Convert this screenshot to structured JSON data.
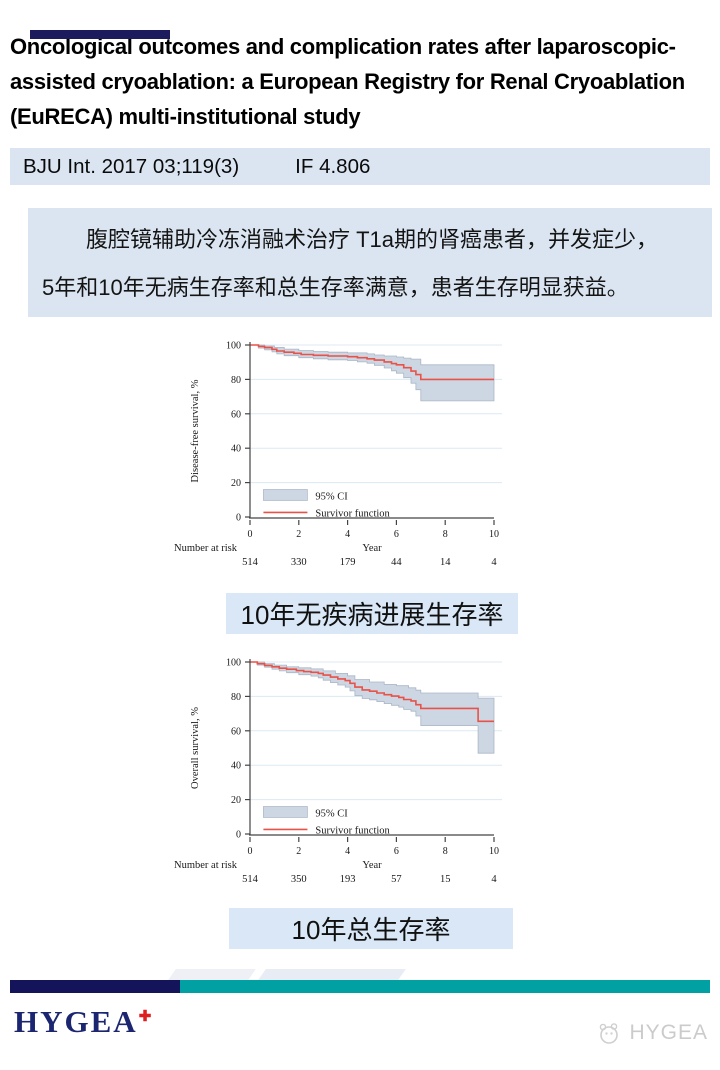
{
  "header": {
    "title": "Oncological outcomes and complication rates after laparoscopic-assisted cryoablation: a European Registry for Renal Cryoablation (EuRECA) multi-institutional study",
    "citation": "BJU Int. 2017 03;119(3)",
    "impact_factor": "IF 4.806"
  },
  "summary": {
    "lines": [
      "腹腔镜辅助冷冻消融术治疗 T1a期的肾癌患者，并发症少，",
      "5年和10年无病生存率和总生存率满意，患者生存明显获益。"
    ]
  },
  "chart_style": {
    "ci_fill": "#cdd7e3",
    "ci_edge": "#aab6c6",
    "line": "#e85248",
    "grid": "#dce9f2",
    "axis": "#444444",
    "text": "#1a1a1a"
  },
  "chart_data": [
    {
      "type": "line",
      "subtype": "kaplan-meier-step",
      "title": "",
      "ylabel": "Disease-free survival, %",
      "xlabel": "Year",
      "ylim": [
        0,
        100
      ],
      "xlim": [
        0,
        10
      ],
      "yticks": [
        0,
        20,
        40,
        60,
        80,
        100
      ],
      "xticks": [
        0,
        2,
        4,
        6,
        8,
        10
      ],
      "grid": "horizontal-on",
      "legend_position": "bottom-left-inside",
      "legend": [
        "95% CI",
        "Survivor function"
      ],
      "number_at_risk_label": "Number at risk",
      "number_at_risk": [
        514,
        330,
        179,
        44,
        14,
        4
      ],
      "survivor": [
        [
          0,
          100
        ],
        [
          0.35,
          99.2
        ],
        [
          0.6,
          98.5
        ],
        [
          0.9,
          97.5
        ],
        [
          1.1,
          96.5
        ],
        [
          1.4,
          95.8
        ],
        [
          1.8,
          95.2
        ],
        [
          2.1,
          94.5
        ],
        [
          2.6,
          94
        ],
        [
          3.2,
          93.6
        ],
        [
          4,
          93.2
        ],
        [
          4.4,
          92.6
        ],
        [
          4.8,
          92
        ],
        [
          5.1,
          91.2
        ],
        [
          5.5,
          90.2
        ],
        [
          5.8,
          89.2
        ],
        [
          6,
          88.5
        ],
        [
          6.3,
          86.8
        ],
        [
          6.6,
          84.8
        ],
        [
          6.8,
          82.8
        ],
        [
          7,
          80
        ],
        [
          10,
          80
        ]
      ],
      "ci_upper": [
        [
          0,
          100
        ],
        [
          0.6,
          99.4
        ],
        [
          1,
          98.6
        ],
        [
          1.4,
          97.6
        ],
        [
          2,
          96.8
        ],
        [
          2.6,
          96.2
        ],
        [
          3.2,
          95.8
        ],
        [
          4,
          95.4
        ],
        [
          4.8,
          94.8
        ],
        [
          5.1,
          94.2
        ],
        [
          5.5,
          93.6
        ],
        [
          6,
          93
        ],
        [
          6.3,
          92.4
        ],
        [
          6.6,
          91.8
        ],
        [
          7,
          88.5
        ],
        [
          10,
          88.5
        ]
      ],
      "ci_lower": [
        [
          0,
          100
        ],
        [
          0.35,
          98.2
        ],
        [
          0.6,
          97.2
        ],
        [
          0.9,
          96
        ],
        [
          1.1,
          94.8
        ],
        [
          1.4,
          93.8
        ],
        [
          2,
          92.6
        ],
        [
          2.6,
          92
        ],
        [
          3.2,
          91.4
        ],
        [
          4,
          91
        ],
        [
          4.4,
          90.2
        ],
        [
          4.8,
          89.4
        ],
        [
          5.1,
          88.2
        ],
        [
          5.5,
          86.6
        ],
        [
          5.8,
          85
        ],
        [
          6,
          83.6
        ],
        [
          6.3,
          81
        ],
        [
          6.6,
          77.8
        ],
        [
          6.8,
          74
        ],
        [
          7,
          67.5
        ],
        [
          10,
          67.5
        ]
      ],
      "caption": "10年无疾病进展生存率"
    },
    {
      "type": "line",
      "subtype": "kaplan-meier-step",
      "title": "",
      "ylabel": "Overall survival, %",
      "xlabel": "Year",
      "ylim": [
        0,
        100
      ],
      "xlim": [
        0,
        10
      ],
      "yticks": [
        0,
        20,
        40,
        60,
        80,
        100
      ],
      "xticks": [
        0,
        2,
        4,
        6,
        8,
        10
      ],
      "grid": "horizontal-on",
      "legend_position": "bottom-left-inside",
      "legend": [
        "95% CI",
        "Survivor function"
      ],
      "number_at_risk_label": "Number at risk",
      "number_at_risk": [
        514,
        350,
        193,
        57,
        15,
        4
      ],
      "survivor": [
        [
          0,
          100
        ],
        [
          0.3,
          99
        ],
        [
          0.6,
          98
        ],
        [
          0.9,
          97.2
        ],
        [
          1.2,
          96.4
        ],
        [
          1.5,
          95.8
        ],
        [
          1.9,
          95
        ],
        [
          2.2,
          94.4
        ],
        [
          2.5,
          94
        ],
        [
          2.8,
          93.4
        ],
        [
          3,
          92.4
        ],
        [
          3.3,
          91.2
        ],
        [
          3.6,
          90.2
        ],
        [
          3.9,
          89.2
        ],
        [
          4.1,
          87.6
        ],
        [
          4.3,
          85.4
        ],
        [
          4.6,
          83.8
        ],
        [
          4.9,
          83
        ],
        [
          5.2,
          82
        ],
        [
          5.5,
          81
        ],
        [
          5.8,
          80.2
        ],
        [
          6.1,
          79.4
        ],
        [
          6.3,
          78.2
        ],
        [
          6.6,
          77.4
        ],
        [
          6.8,
          75.2
        ],
        [
          7,
          73
        ],
        [
          9.2,
          73
        ],
        [
          9.35,
          65.5
        ],
        [
          10,
          65.5
        ]
      ],
      "ci_upper": [
        [
          0,
          100
        ],
        [
          0.6,
          99
        ],
        [
          1,
          98.2
        ],
        [
          1.5,
          97.2
        ],
        [
          2,
          96.6
        ],
        [
          2.5,
          96
        ],
        [
          3,
          94.8
        ],
        [
          3.5,
          93.4
        ],
        [
          4,
          92
        ],
        [
          4.3,
          89.8
        ],
        [
          4.9,
          88.4
        ],
        [
          5.5,
          87
        ],
        [
          6,
          86.2
        ],
        [
          6.5,
          85
        ],
        [
          6.8,
          83.6
        ],
        [
          7,
          82
        ],
        [
          9.2,
          82
        ],
        [
          9.35,
          79
        ],
        [
          10,
          79
        ]
      ],
      "ci_lower": [
        [
          0,
          100
        ],
        [
          0.3,
          98.2
        ],
        [
          0.6,
          97
        ],
        [
          0.9,
          95.8
        ],
        [
          1.2,
          94.8
        ],
        [
          1.5,
          93.8
        ],
        [
          2,
          92.6
        ],
        [
          2.5,
          91.8
        ],
        [
          2.8,
          90.8
        ],
        [
          3,
          89.4
        ],
        [
          3.3,
          88
        ],
        [
          3.6,
          86.6
        ],
        [
          3.9,
          85.4
        ],
        [
          4.1,
          83.2
        ],
        [
          4.3,
          80.4
        ],
        [
          4.6,
          78.8
        ],
        [
          4.9,
          78
        ],
        [
          5.2,
          77
        ],
        [
          5.5,
          75.8
        ],
        [
          5.8,
          74.8
        ],
        [
          6.1,
          73.8
        ],
        [
          6.3,
          72.4
        ],
        [
          6.6,
          71.4
        ],
        [
          6.8,
          68.6
        ],
        [
          7,
          63
        ],
        [
          9.2,
          63
        ],
        [
          9.35,
          47
        ],
        [
          10,
          47
        ]
      ],
      "caption": "10年总生存率"
    }
  ],
  "footer": {
    "logo_text": "HYGEA",
    "plus_icon": "✚",
    "watermark_text": "HYGEA",
    "watermark_icon": "panda-logo-icon"
  },
  "palette": {
    "topbar_navy": "#1b1b5e",
    "footer_navy": "#14145a",
    "footer_teal": "#00A0A3",
    "panel_blue": "#dbe5f2",
    "caption_blue": "#d9e7f6",
    "logo_navy": "#1b2570",
    "plus_red": "#dd1f1f",
    "watermark_gray": "#cbcbcb"
  }
}
